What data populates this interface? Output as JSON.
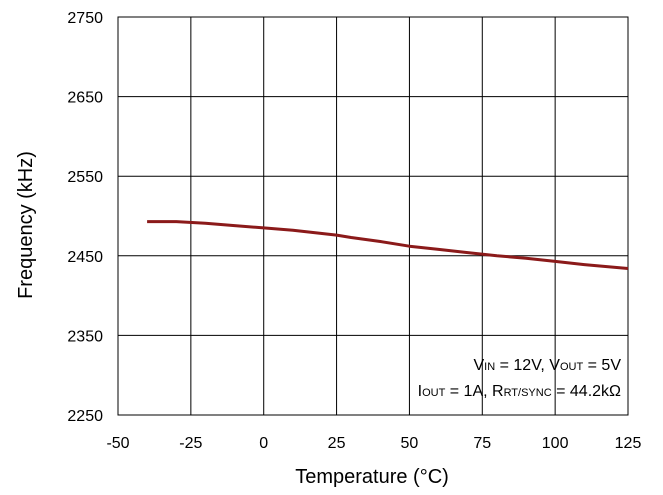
{
  "chart_data": {
    "type": "line",
    "xlabel": "Temperature (°C)",
    "ylabel": "Frequency (kHz)",
    "xlim": [
      -50,
      125
    ],
    "ylim": [
      2250,
      2750
    ],
    "x_ticks": [
      -50,
      -25,
      0,
      25,
      50,
      75,
      100,
      125
    ],
    "y_ticks": [
      2250,
      2350,
      2450,
      2550,
      2650,
      2750
    ],
    "grid": true,
    "legend": "none",
    "series": [
      {
        "color": "#8b1a1a",
        "x": [
          -40,
          -30,
          -20,
          -10,
          0,
          10,
          20,
          25,
          30,
          40,
          50,
          60,
          70,
          80,
          90,
          100,
          110,
          125
        ],
        "y": [
          2493,
          2493,
          2491,
          2488,
          2485,
          2482,
          2478,
          2476,
          2473,
          2468,
          2462,
          2458,
          2454,
          2450,
          2447,
          2443,
          2439,
          2434
        ]
      }
    ],
    "annotation": {
      "line1": {
        "v": "V",
        "in": "IN",
        "mid": " = 12V, V",
        "out": "OUT",
        "end": " = 5V"
      },
      "line2": {
        "i": "I",
        "out": "OUT",
        "mid": " = 1A, R",
        "rt": "RT/SYNC",
        "end": " = 44.2kΩ"
      }
    }
  }
}
